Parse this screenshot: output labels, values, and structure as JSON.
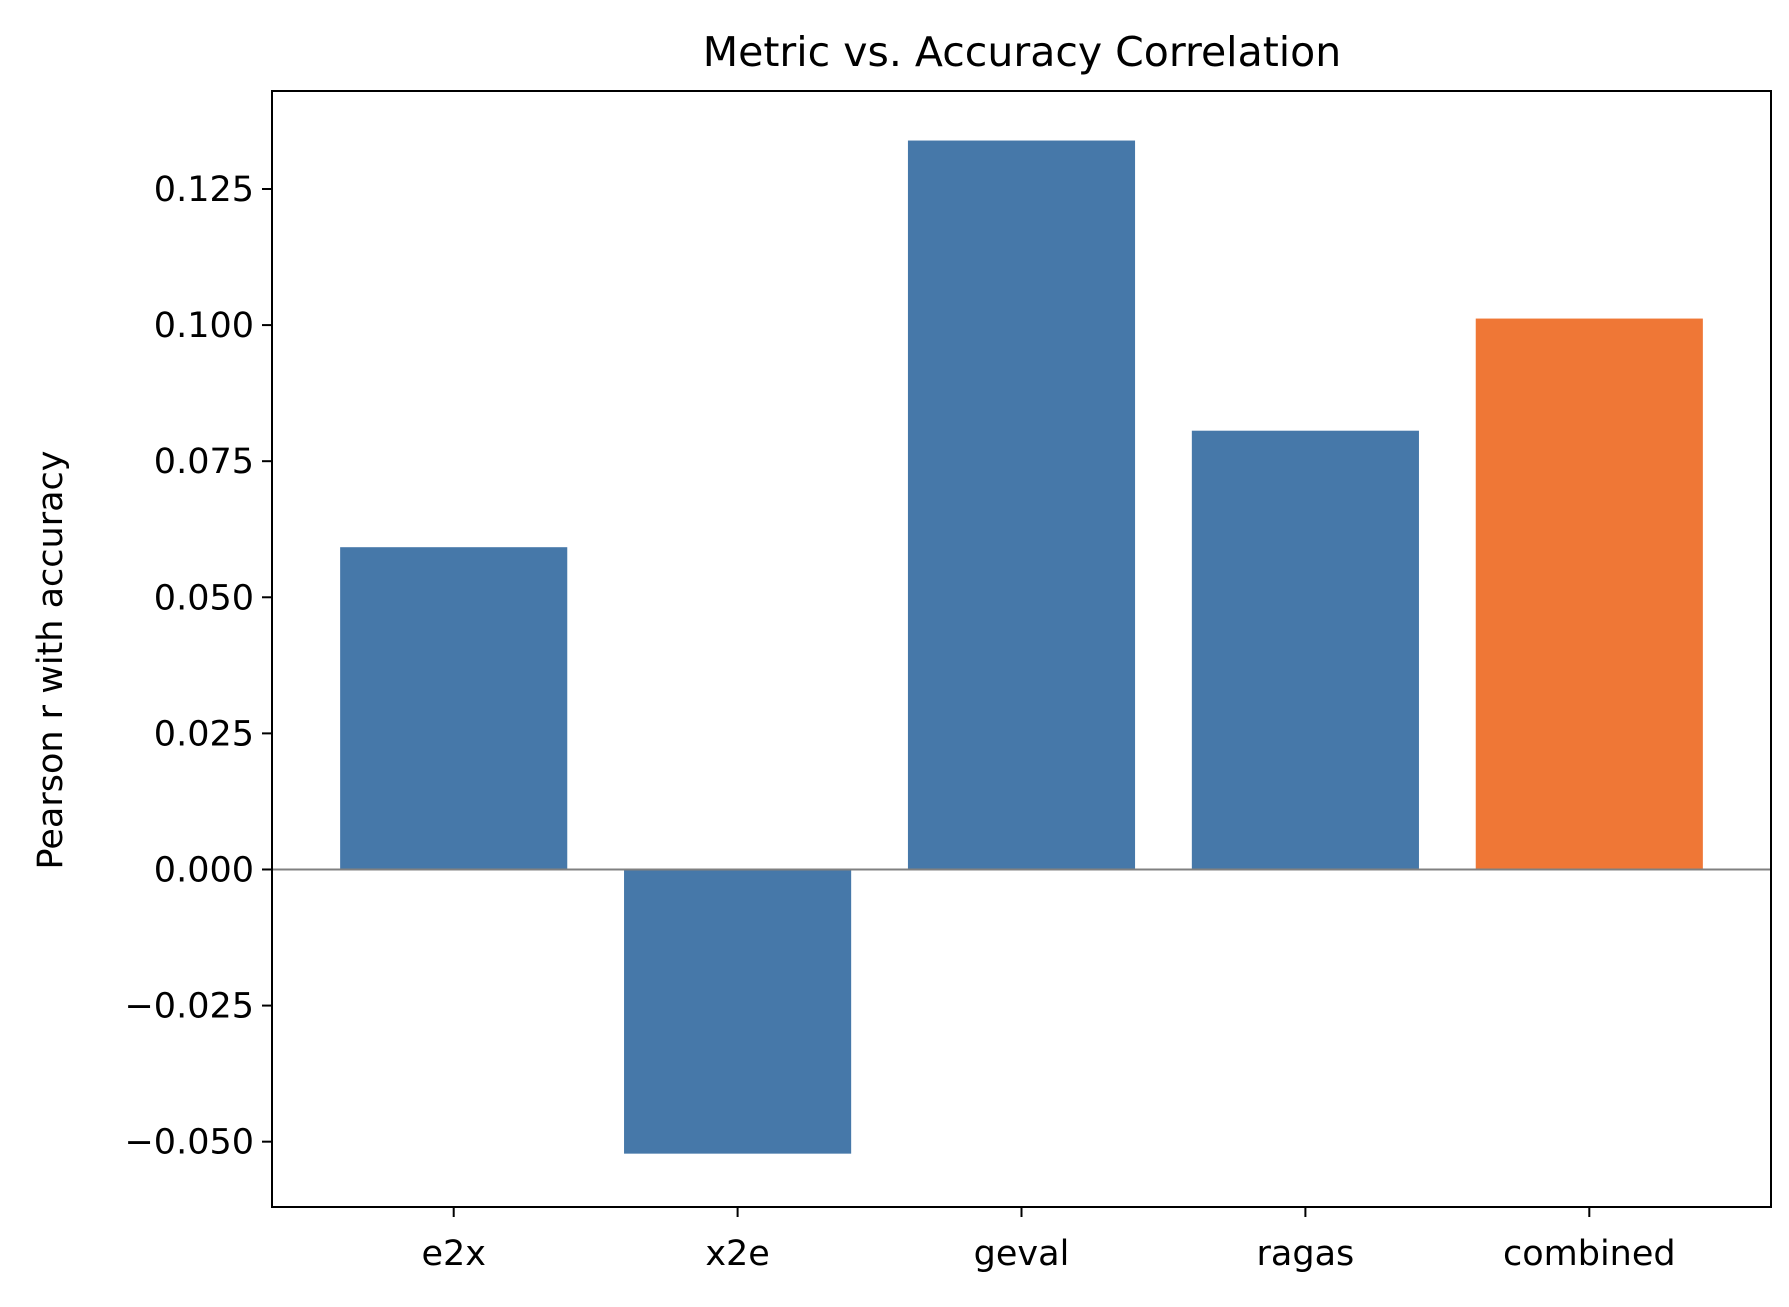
{
  "chart_data": {
    "type": "bar",
    "title": "Metric vs. Accuracy Correlation",
    "xlabel": "",
    "ylabel": "Pearson r with accuracy",
    "categories": [
      "e2x",
      "x2e",
      "geval",
      "ragas",
      "combined"
    ],
    "values": [
      0.0592,
      -0.0522,
      0.1339,
      0.0806,
      0.1012
    ],
    "bar_colors": [
      "#4678a9",
      "#4678a9",
      "#4678a9",
      "#4678a9",
      "#ef7736"
    ],
    "ylim": [
      -0.062,
      0.143
    ],
    "yticks": [
      -0.05,
      -0.025,
      0.0,
      0.025,
      0.05,
      0.075,
      0.1,
      0.125
    ],
    "ytick_labels": [
      "−0.050",
      "−0.025",
      "0.000",
      "0.025",
      "0.050",
      "0.075",
      "0.100",
      "0.125"
    ],
    "zero_line": true,
    "zero_line_color": "#808080",
    "grid": false,
    "legend": "none"
  }
}
